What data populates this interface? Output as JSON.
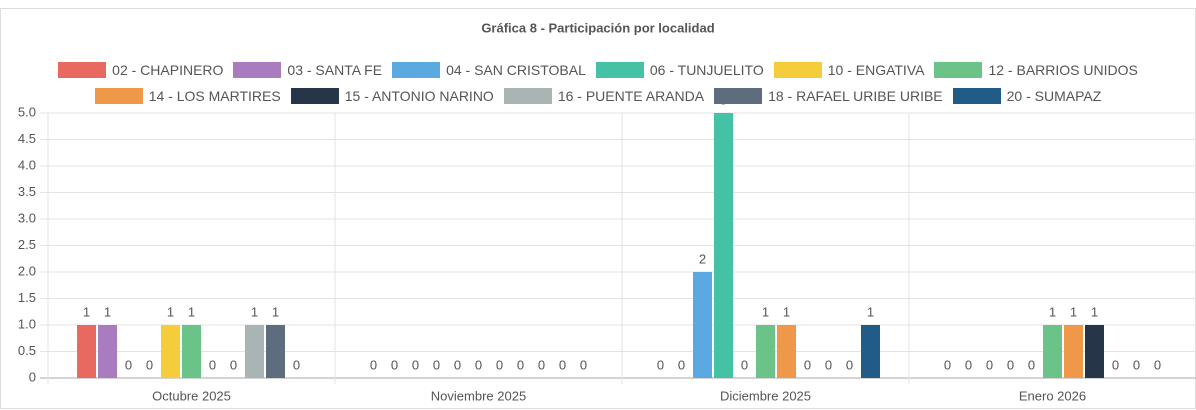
{
  "chart_data": {
    "type": "bar",
    "title": "Gráfica 8 - Participación por localidad",
    "categories": [
      "Octubre 2025",
      "Noviembre 2025",
      "Diciembre 2025",
      "Enero 2026"
    ],
    "series": [
      {
        "name": "02 - CHAPINERO",
        "color": "#e8695f",
        "values": [
          1,
          0,
          0,
          0
        ]
      },
      {
        "name": "03 - SANTA FE",
        "color": "#a97cc0",
        "values": [
          1,
          0,
          0,
          0
        ]
      },
      {
        "name": "04 - SAN CRISTOBAL",
        "color": "#5aa9e0",
        "values": [
          0,
          0,
          2,
          0
        ]
      },
      {
        "name": "06 - TUNJUELITO",
        "color": "#45c1a6",
        "values": [
          0,
          0,
          5,
          0
        ]
      },
      {
        "name": "10 - ENGATIVA",
        "color": "#f5cc3a",
        "values": [
          1,
          0,
          0,
          0
        ]
      },
      {
        "name": "12 - BARRIOS UNIDOS",
        "color": "#6cc387",
        "values": [
          1,
          0,
          1,
          1
        ]
      },
      {
        "name": "14 - LOS MARTIRES",
        "color": "#f0984a",
        "values": [
          0,
          0,
          1,
          1
        ]
      },
      {
        "name": "15 - ANTONIO NARINO",
        "color": "#263548",
        "values": [
          0,
          0,
          0,
          1
        ]
      },
      {
        "name": "16 - PUENTE ARANDA",
        "color": "#a9b4b4",
        "values": [
          1,
          0,
          0,
          0
        ]
      },
      {
        "name": "18 - RAFAEL URIBE URIBE",
        "color": "#5d6d7e",
        "values": [
          1,
          0,
          0,
          0
        ]
      },
      {
        "name": "20 - SUMAPAZ",
        "color": "#215b88",
        "values": [
          0,
          0,
          1,
          0
        ]
      }
    ],
    "ylim": [
      0,
      5
    ],
    "yticks": [
      0,
      0.5,
      {
        "value": 1,
        "label": "1.0"
      },
      1.5,
      {
        "value": 2,
        "label": "2.0"
      },
      2.5,
      {
        "value": 3,
        "label": "3.0"
      },
      3.5,
      {
        "value": 4,
        "label": "4.0"
      },
      4.5,
      {
        "value": 5,
        "label": "5.0"
      }
    ],
    "grid": true
  }
}
